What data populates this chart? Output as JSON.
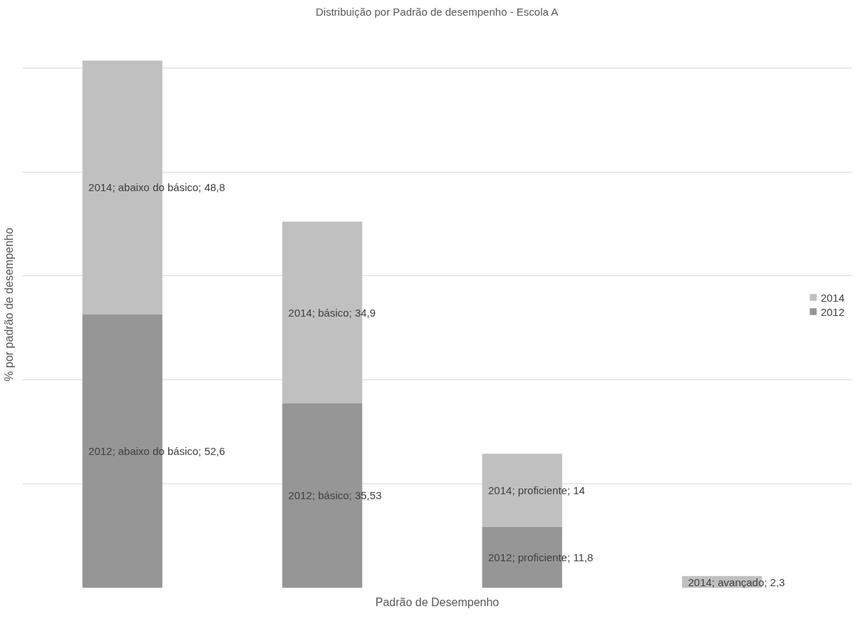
{
  "chart_data": {
    "type": "bar",
    "stacked": true,
    "title": "Distribuição por Padrão de desempenho - Escola A",
    "xlabel": "Padrão de Desempenho",
    "ylabel": "% por padrão de desempenho",
    "categories": [
      null,
      null,
      null,
      null
    ],
    "series": [
      {
        "name": "2012",
        "color": "#969696",
        "values": [
          52.6,
          35.53,
          11.8,
          null
        ],
        "value_labels": [
          "2012; abaixo do básico; 52,6",
          "2012; básico; 35,53",
          "2012; proficiente; 11,8",
          null
        ]
      },
      {
        "name": "2014",
        "color": "#c0c0c0",
        "values": [
          48.8,
          34.9,
          14,
          2.3
        ],
        "value_labels": [
          "2014; abaixo do básico; 48,8",
          "2014; básico; 34,9",
          "2014; proficiente; 14",
          "2014; avançado; 2,3"
        ]
      }
    ],
    "grid": "y",
    "tick_labels": false,
    "legend": "right"
  }
}
